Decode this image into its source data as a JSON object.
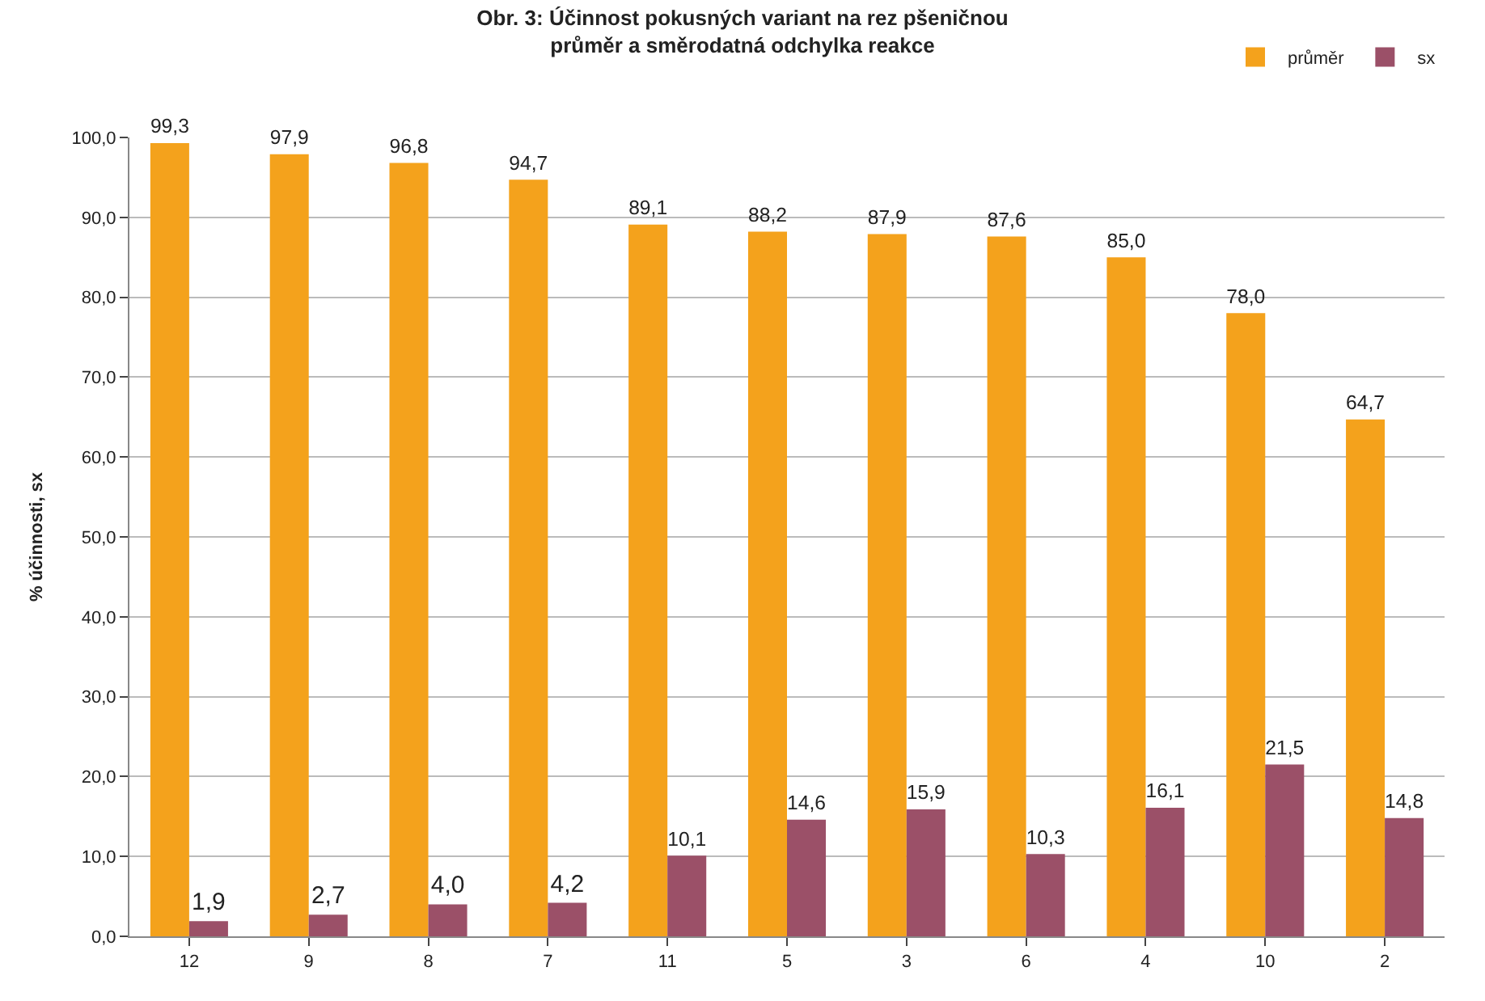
{
  "chart_data": {
    "type": "bar",
    "title": "Obr. 3: Účinnost pokusných variant na rez pšeničnou\nprůměr a směrodatná odchylka reakce",
    "ylabel": "% účinnosti, sx",
    "categories": [
      "12",
      "9",
      "8",
      "7",
      "11",
      "5",
      "3",
      "6",
      "4",
      "10",
      "2"
    ],
    "series": [
      {
        "name": "průměr",
        "color": "#f4a21c",
        "values": [
          99.3,
          97.9,
          96.8,
          94.7,
          89.1,
          88.2,
          87.9,
          87.6,
          85.0,
          78.0,
          64.7
        ],
        "value_labels": [
          "99,3",
          "97,9",
          "96,8",
          "94,7",
          "89,1",
          "88,2",
          "87,9",
          "87,6",
          "85,0",
          "78,0",
          "64,7"
        ]
      },
      {
        "name": "sx",
        "color": "#9b5068",
        "values": [
          1.9,
          2.7,
          4.0,
          4.2,
          10.1,
          14.6,
          15.9,
          10.3,
          16.1,
          21.5,
          14.8
        ],
        "value_labels": [
          "1,9",
          "2,7",
          "4,0",
          "4,2",
          "10,1",
          "14,6",
          "15,9",
          "10,3",
          "16,1",
          "21,5",
          "14,8"
        ]
      }
    ],
    "ylim": [
      0,
      100
    ],
    "yticks": [
      {
        "value": 0,
        "label": "0,0"
      },
      {
        "value": 10,
        "label": "10,0"
      },
      {
        "value": 20,
        "label": "20,0"
      },
      {
        "value": 30,
        "label": "30,0"
      },
      {
        "value": 40,
        "label": "40,0"
      },
      {
        "value": 50,
        "label": "50,0"
      },
      {
        "value": 60,
        "label": "60,0"
      },
      {
        "value": 70,
        "label": "70,0"
      },
      {
        "value": 80,
        "label": "80,0"
      },
      {
        "value": 90,
        "label": "90,0"
      },
      {
        "value": 100,
        "label": "100,0"
      }
    ],
    "grid": "y",
    "legend": "top right"
  }
}
